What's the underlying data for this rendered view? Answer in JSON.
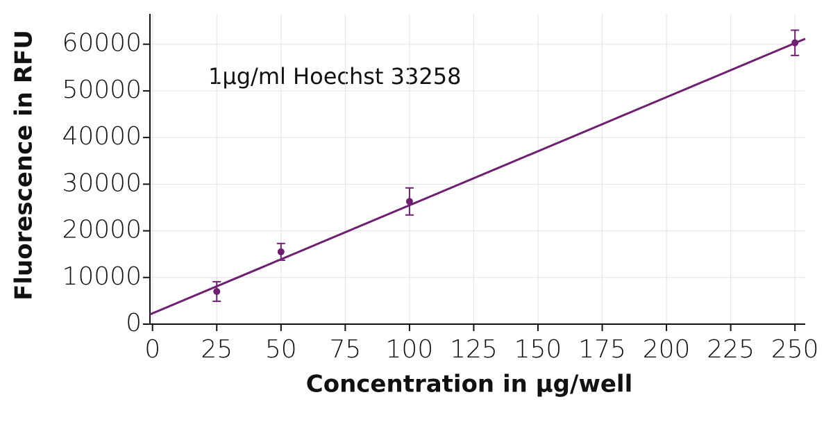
{
  "chart_data": {
    "type": "scatter",
    "annotation": "1µg/ml Hoechst 33258",
    "x_label": "Concentration in µg/well",
    "y_label": "Fluorescence in RFU",
    "series": [
      {
        "name": null,
        "color": "#6e1f72",
        "x": [
          25,
          50,
          100,
          250
        ],
        "values": [
          7000,
          15500,
          26300,
          60300
        ],
        "errors": [
          2100,
          1800,
          2900,
          2700
        ]
      }
    ],
    "fit": {
      "x": [
        -1,
        254
      ],
      "y": [
        2080,
        61160
      ],
      "color": "#6e1f72"
    },
    "xlim": [
      -1,
      254
    ],
    "ylim": [
      0,
      66500
    ],
    "xticks": [
      0,
      25,
      50,
      75,
      100,
      125,
      150,
      175,
      200,
      225,
      250
    ],
    "yticks": [
      0,
      10000,
      20000,
      30000,
      40000,
      50000,
      60000
    ],
    "grid": true
  }
}
